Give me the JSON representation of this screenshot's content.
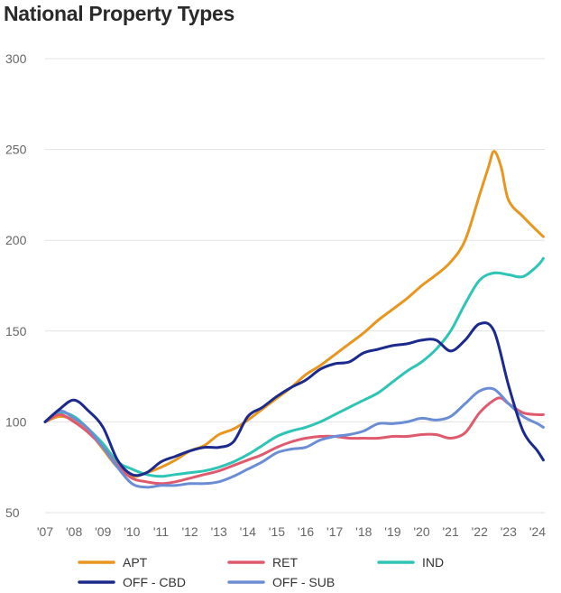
{
  "chart_data": {
    "type": "line",
    "title": "National Property Types",
    "xlabel": "",
    "ylabel": "",
    "ylim": [
      50,
      300
    ],
    "xlim": [
      2007,
      2024.25
    ],
    "y_ticks": [
      50,
      100,
      150,
      200,
      250,
      300
    ],
    "x_tick_labels": [
      "'07",
      "'08",
      "'09",
      "'10",
      "'11",
      "'12",
      "'13",
      "'14",
      "'15",
      "'16",
      "'17",
      "'18",
      "'19",
      "'20",
      "'21",
      "'22",
      "'23",
      "'24"
    ],
    "grid": "horizontal",
    "legend_position": "bottom",
    "series": [
      {
        "name": "APT",
        "color": "#E8961E",
        "x": [
          2007.0,
          2007.5,
          2008.0,
          2008.5,
          2009.0,
          2009.5,
          2010.0,
          2010.5,
          2011.0,
          2011.5,
          2012.0,
          2012.5,
          2013.0,
          2013.5,
          2014.0,
          2014.5,
          2015.0,
          2015.5,
          2016.0,
          2016.5,
          2017.0,
          2017.5,
          2018.0,
          2018.5,
          2019.0,
          2019.5,
          2020.0,
          2020.5,
          2021.0,
          2021.5,
          2022.0,
          2022.3,
          2022.5,
          2022.75,
          2023.0,
          2023.5,
          2024.0,
          2024.2
        ],
        "y": [
          100,
          103,
          101,
          95,
          85,
          75,
          70,
          72,
          75,
          79,
          84,
          87,
          93,
          96,
          101,
          107,
          113,
          119,
          126,
          131,
          137,
          143,
          149,
          156,
          162,
          168,
          175,
          181,
          188,
          200,
          225,
          240,
          249,
          240,
          222,
          213,
          205,
          202
        ]
      },
      {
        "name": "RET",
        "color": "#E05A6E",
        "x": [
          2007.0,
          2007.5,
          2008.0,
          2008.5,
          2009.0,
          2009.5,
          2010.0,
          2010.5,
          2011.0,
          2011.5,
          2012.0,
          2012.5,
          2013.0,
          2013.5,
          2014.0,
          2014.5,
          2015.0,
          2015.5,
          2016.0,
          2016.5,
          2017.0,
          2017.5,
          2018.0,
          2018.5,
          2019.0,
          2019.5,
          2020.0,
          2020.5,
          2021.0,
          2021.5,
          2022.0,
          2022.5,
          2022.75,
          2023.0,
          2023.5,
          2024.0,
          2024.2
        ],
        "y": [
          100,
          104,
          100,
          94,
          86,
          76,
          69,
          67,
          66,
          67,
          69,
          71,
          73,
          76,
          79,
          82,
          86,
          89,
          91,
          92,
          92,
          91,
          91,
          91,
          92,
          92,
          93,
          93,
          91,
          94,
          105,
          112,
          113,
          110,
          105,
          104,
          104
        ]
      },
      {
        "name": "IND",
        "color": "#2EC4B6",
        "x": [
          2007.0,
          2007.5,
          2008.0,
          2008.5,
          2009.0,
          2009.5,
          2010.0,
          2010.5,
          2011.0,
          2011.5,
          2012.0,
          2012.5,
          2013.0,
          2013.5,
          2014.0,
          2014.5,
          2015.0,
          2015.5,
          2016.0,
          2016.5,
          2017.0,
          2017.5,
          2018.0,
          2018.5,
          2019.0,
          2019.5,
          2020.0,
          2020.5,
          2021.0,
          2021.5,
          2022.0,
          2022.5,
          2023.0,
          2023.5,
          2024.0,
          2024.2
        ],
        "y": [
          100,
          105,
          103,
          96,
          88,
          78,
          74,
          71,
          70,
          71,
          72,
          73,
          75,
          78,
          82,
          87,
          92,
          95,
          97,
          100,
          104,
          108,
          112,
          116,
          122,
          128,
          133,
          140,
          150,
          165,
          178,
          182,
          181,
          180,
          186,
          190
        ]
      },
      {
        "name": "OFF - CBD",
        "color": "#1B2A8C",
        "x": [
          2007.0,
          2007.5,
          2008.0,
          2008.5,
          2009.0,
          2009.5,
          2010.0,
          2010.5,
          2011.0,
          2011.5,
          2012.0,
          2012.5,
          2013.0,
          2013.5,
          2014.0,
          2014.5,
          2015.0,
          2015.5,
          2016.0,
          2016.5,
          2017.0,
          2017.5,
          2018.0,
          2018.5,
          2019.0,
          2019.5,
          2020.0,
          2020.5,
          2021.0,
          2021.5,
          2022.0,
          2022.5,
          2023.0,
          2023.5,
          2024.0,
          2024.2
        ],
        "y": [
          100,
          107,
          112,
          106,
          97,
          79,
          71,
          72,
          78,
          81,
          84,
          86,
          86,
          89,
          103,
          108,
          114,
          119,
          123,
          129,
          132,
          133,
          138,
          140,
          142,
          143,
          145,
          145,
          139,
          145,
          154,
          150,
          120,
          95,
          84,
          79
        ]
      },
      {
        "name": "OFF - SUB",
        "color": "#6B8DD6",
        "x": [
          2007.0,
          2007.5,
          2008.0,
          2008.5,
          2009.0,
          2009.5,
          2010.0,
          2010.5,
          2011.0,
          2011.5,
          2012.0,
          2012.5,
          2013.0,
          2013.5,
          2014.0,
          2014.5,
          2015.0,
          2015.5,
          2016.0,
          2016.5,
          2017.0,
          2017.5,
          2018.0,
          2018.5,
          2019.0,
          2019.5,
          2020.0,
          2020.5,
          2021.0,
          2021.5,
          2022.0,
          2022.5,
          2023.0,
          2023.5,
          2024.0,
          2024.2
        ],
        "y": [
          100,
          106,
          102,
          96,
          86,
          75,
          66,
          64,
          65,
          65,
          66,
          66,
          67,
          70,
          74,
          78,
          83,
          85,
          86,
          90,
          92,
          93,
          95,
          99,
          99,
          100,
          102,
          101,
          103,
          110,
          117,
          118,
          110,
          103,
          99,
          97
        ]
      }
    ]
  }
}
